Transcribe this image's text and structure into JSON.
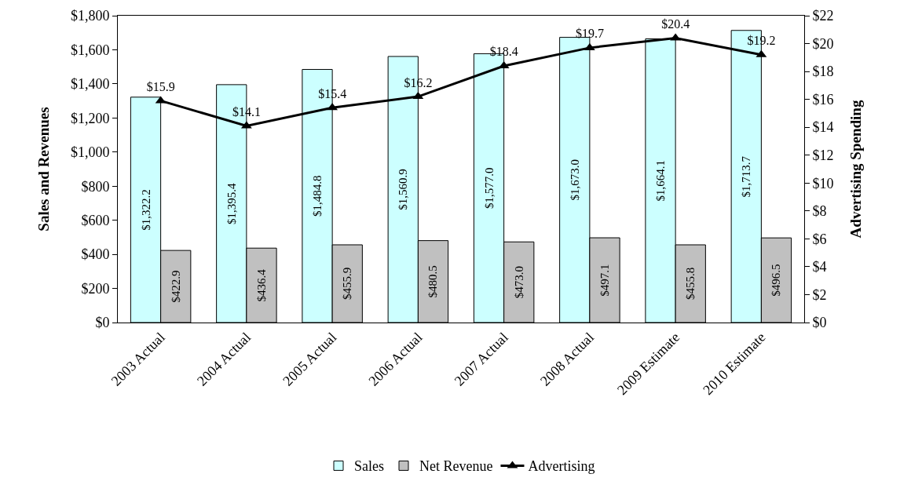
{
  "chart_data": {
    "type": "bar",
    "categories": [
      "2003 Actual",
      "2004 Actual",
      "2005 Actual",
      "2006 Actual",
      "2007 Actual",
      "2008 Actual",
      "2009 Estimate",
      "2010 Estimate"
    ],
    "series": [
      {
        "name": "Sales",
        "color": "#ccffff",
        "values": [
          1322.2,
          1395.4,
          1484.8,
          1560.9,
          1577.0,
          1673.0,
          1664.1,
          1713.7
        ],
        "value_labels": [
          "$1,322.2",
          "$1,395.4",
          "$1,484.8",
          "$1,560.9",
          "$1,577.0",
          "$1,673.0",
          "$1,664.1",
          "$1,713.7"
        ]
      },
      {
        "name": "Net Revenue",
        "color": "#c0c0c0",
        "values": [
          422.9,
          436.4,
          455.9,
          480.5,
          473.0,
          497.1,
          455.8,
          496.5
        ],
        "value_labels": [
          "$422.9",
          "$436.4",
          "$455.9",
          "$480.5",
          "$473.0",
          "$497.1",
          "$455.8",
          "$496.5"
        ]
      },
      {
        "name": "Advertising",
        "type": "line",
        "axis": "y2",
        "color": "#000000",
        "marker": "triangle",
        "values": [
          15.9,
          14.1,
          15.4,
          16.2,
          18.4,
          19.7,
          20.4,
          19.2
        ],
        "value_labels": [
          "$15.9",
          "$14.1",
          "$15.4",
          "$16.2",
          "$18.4",
          "$19.7",
          "$20.4",
          "$19.2"
        ]
      }
    ],
    "ylabel": "Sales and Revenues",
    "y2label": "Advertising Spending",
    "ylim": [
      0,
      1800
    ],
    "yticks": [
      {
        "value": 0,
        "label": "$0"
      },
      {
        "value": 200,
        "label": "$200"
      },
      {
        "value": 400,
        "label": "$400"
      },
      {
        "value": 600,
        "label": "$600"
      },
      {
        "value": 800,
        "label": "$800"
      },
      {
        "value": 1000,
        "label": "$1,000"
      },
      {
        "value": 1200,
        "label": "$1,200"
      },
      {
        "value": 1400,
        "label": "$1,400"
      },
      {
        "value": 1600,
        "label": "$1,600"
      },
      {
        "value": 1800,
        "label": "$1,800"
      }
    ],
    "y2lim": [
      0,
      22
    ],
    "y2ticks": [
      {
        "value": 0,
        "label": "$0"
      },
      {
        "value": 2,
        "label": "$2"
      },
      {
        "value": 4,
        "label": "$4"
      },
      {
        "value": 6,
        "label": "$6"
      },
      {
        "value": 8,
        "label": "$8"
      },
      {
        "value": 10,
        "label": "$10"
      },
      {
        "value": 12,
        "label": "$12"
      },
      {
        "value": 14,
        "label": "$14"
      },
      {
        "value": 16,
        "label": "$16"
      },
      {
        "value": 18,
        "label": "$18"
      },
      {
        "value": 20,
        "label": "$20"
      },
      {
        "value": 22,
        "label": "$22"
      }
    ],
    "grid": false,
    "legend": "bottom"
  }
}
